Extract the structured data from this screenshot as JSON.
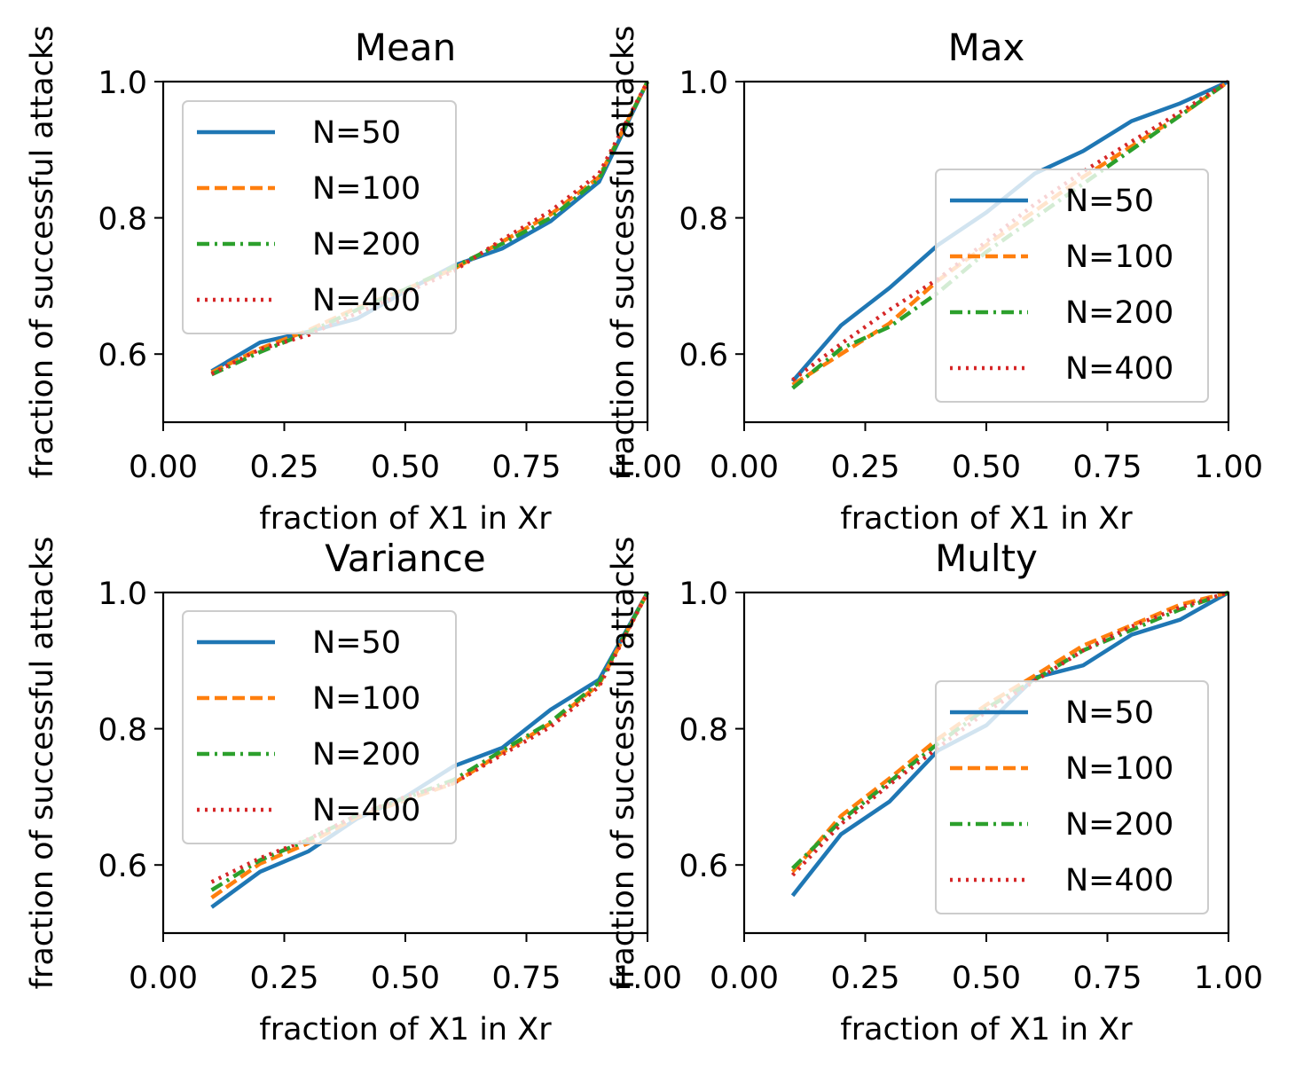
{
  "figure": {
    "type": "grid of 4 line charts (2x2)"
  },
  "colors": {
    "N=50": "#1f77b4",
    "N=100": "#ff7f0e",
    "N=200": "#2ca02c",
    "N=400": "#d62728"
  },
  "chart_data": [
    {
      "type": "line",
      "title": "Mean",
      "xlabel": "fraction of X1 in Xr",
      "ylabel": "fraction of successful attacks",
      "xlim": [
        0.0,
        1.0
      ],
      "ylim": [
        0.5,
        1.0
      ],
      "xticks": [
        "0.00",
        "0.25",
        "0.50",
        "0.75",
        "1.00"
      ],
      "yticks": [
        "0.6",
        "0.8",
        "1.0"
      ],
      "legend_position": "upper left",
      "grid": false,
      "x": [
        0.1,
        0.2,
        0.3,
        0.4,
        0.5,
        0.6,
        0.7,
        0.8,
        0.9,
        1.0
      ],
      "series": [
        {
          "name": "N=50",
          "linestyle": "solid",
          "values": [
            0.575,
            0.617,
            0.633,
            0.652,
            0.692,
            0.73,
            0.755,
            0.795,
            0.853,
            1.0
          ]
        },
        {
          "name": "N=100",
          "linestyle": "dashed",
          "values": [
            0.573,
            0.608,
            0.635,
            0.668,
            0.695,
            0.725,
            0.765,
            0.805,
            0.86,
            1.0
          ]
        },
        {
          "name": "N=200",
          "linestyle": "dashdot",
          "values": [
            0.57,
            0.603,
            0.632,
            0.665,
            0.695,
            0.728,
            0.762,
            0.8,
            0.857,
            1.0
          ]
        },
        {
          "name": "N=400",
          "linestyle": "dotted",
          "values": [
            0.571,
            0.607,
            0.628,
            0.66,
            0.69,
            0.722,
            0.768,
            0.81,
            0.865,
            1.0
          ]
        }
      ]
    },
    {
      "type": "line",
      "title": "Max",
      "xlabel": "fraction of X1 in Xr",
      "ylabel": "fraction of successful attacks",
      "xlim": [
        0.0,
        1.0
      ],
      "ylim": [
        0.5,
        1.0
      ],
      "xticks": [
        "0.00",
        "0.25",
        "0.50",
        "0.75",
        "1.00"
      ],
      "yticks": [
        "0.6",
        "0.8",
        "1.0"
      ],
      "legend_position": "center right",
      "grid": false,
      "x": [
        0.1,
        0.2,
        0.3,
        0.4,
        0.5,
        0.6,
        0.7,
        0.8,
        0.9,
        1.0
      ],
      "series": [
        {
          "name": "N=50",
          "linestyle": "solid",
          "values": [
            0.56,
            0.642,
            0.697,
            0.76,
            0.808,
            0.865,
            0.898,
            0.942,
            0.968,
            1.0
          ]
        },
        {
          "name": "N=100",
          "linestyle": "dashed",
          "values": [
            0.555,
            0.6,
            0.645,
            0.708,
            0.76,
            0.81,
            0.86,
            0.905,
            0.95,
            1.0
          ]
        },
        {
          "name": "N=200",
          "linestyle": "dashdot",
          "values": [
            0.55,
            0.608,
            0.64,
            0.69,
            0.75,
            0.8,
            0.85,
            0.9,
            0.95,
            1.0
          ]
        },
        {
          "name": "N=400",
          "linestyle": "dotted",
          "values": [
            0.562,
            0.615,
            0.665,
            0.71,
            0.765,
            0.82,
            0.868,
            0.912,
            0.955,
            1.0
          ]
        }
      ]
    },
    {
      "type": "line",
      "title": "Variance",
      "xlabel": "fraction of X1 in Xr",
      "ylabel": "fraction of successful attacks",
      "xlim": [
        0.0,
        1.0
      ],
      "ylim": [
        0.5,
        1.0
      ],
      "xticks": [
        "0.00",
        "0.25",
        "0.50",
        "0.75",
        "1.00"
      ],
      "yticks": [
        "0.6",
        "0.8",
        "1.0"
      ],
      "legend_position": "upper left",
      "grid": false,
      "x": [
        0.1,
        0.2,
        0.3,
        0.4,
        0.5,
        0.6,
        0.7,
        0.8,
        0.9,
        1.0
      ],
      "series": [
        {
          "name": "N=50",
          "linestyle": "solid",
          "values": [
            0.538,
            0.59,
            0.62,
            0.668,
            0.7,
            0.745,
            0.772,
            0.828,
            0.872,
            1.0
          ]
        },
        {
          "name": "N=100",
          "linestyle": "dashed",
          "values": [
            0.552,
            0.602,
            0.632,
            0.67,
            0.695,
            0.72,
            0.765,
            0.808,
            0.865,
            1.0
          ]
        },
        {
          "name": "N=200",
          "linestyle": "dashdot",
          "values": [
            0.563,
            0.607,
            0.637,
            0.673,
            0.698,
            0.725,
            0.768,
            0.81,
            0.868,
            1.0
          ]
        },
        {
          "name": "N=400",
          "linestyle": "dotted",
          "values": [
            0.575,
            0.61,
            0.638,
            0.673,
            0.7,
            0.72,
            0.762,
            0.803,
            0.862,
            1.0
          ]
        }
      ]
    },
    {
      "type": "line",
      "title": "Multy",
      "xlabel": "fraction of X1 in Xr",
      "ylabel": "fraction of successful attacks",
      "xlim": [
        0.0,
        1.0
      ],
      "ylim": [
        0.5,
        1.0
      ],
      "xticks": [
        "0.00",
        "0.25",
        "0.50",
        "0.75",
        "1.00"
      ],
      "yticks": [
        "0.6",
        "0.8",
        "1.0"
      ],
      "legend_position": "center right",
      "grid": false,
      "x": [
        0.1,
        0.2,
        0.3,
        0.4,
        0.5,
        0.6,
        0.7,
        0.8,
        0.9,
        1.0
      ],
      "series": [
        {
          "name": "N=50",
          "linestyle": "solid",
          "values": [
            0.555,
            0.645,
            0.693,
            0.768,
            0.805,
            0.875,
            0.893,
            0.938,
            0.96,
            1.0
          ]
        },
        {
          "name": "N=100",
          "linestyle": "dashed",
          "values": [
            0.59,
            0.672,
            0.727,
            0.785,
            0.835,
            0.878,
            0.922,
            0.952,
            0.982,
            1.0
          ]
        },
        {
          "name": "N=200",
          "linestyle": "dashdot",
          "values": [
            0.595,
            0.665,
            0.722,
            0.778,
            0.83,
            0.872,
            0.915,
            0.945,
            0.975,
            1.0
          ]
        },
        {
          "name": "N=400",
          "linestyle": "dotted",
          "values": [
            0.585,
            0.66,
            0.718,
            0.772,
            0.825,
            0.87,
            0.915,
            0.95,
            0.978,
            1.0
          ]
        }
      ]
    }
  ]
}
